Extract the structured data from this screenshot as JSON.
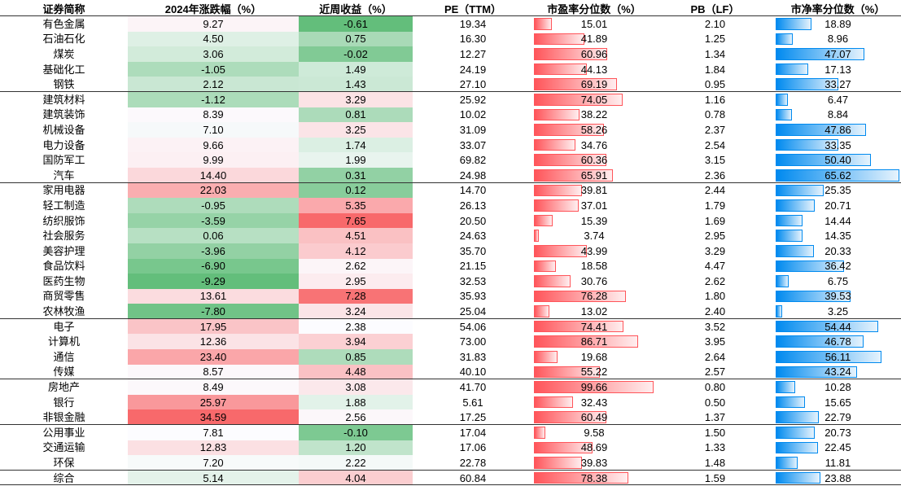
{
  "chart_data": {
    "type": "table",
    "columns": [
      "证券简称",
      "2024年涨跌幅（%）",
      "近周收益（%）",
      "PE（TTM）",
      "市盈率分位数（%）",
      "PB（LF）",
      "市净率分位数（%）"
    ],
    "groups": [
      {
        "rows": [
          [
            "有色金属",
            "9.27",
            "-0.61",
            "19.34",
            "15.01",
            "2.10",
            "18.89"
          ],
          [
            "石油石化",
            "4.50",
            "0.75",
            "16.30",
            "41.89",
            "1.25",
            "8.96"
          ],
          [
            "煤炭",
            "3.06",
            "-0.02",
            "12.27",
            "60.96",
            "1.34",
            "47.07"
          ],
          [
            "基础化工",
            "-1.05",
            "1.49",
            "24.19",
            "44.13",
            "1.84",
            "17.13"
          ],
          [
            "钢铁",
            "2.12",
            "1.43",
            "27.10",
            "69.19",
            "0.95",
            "33.27"
          ]
        ]
      },
      {
        "rows": [
          [
            "建筑材料",
            "-1.12",
            "3.29",
            "25.92",
            "74.05",
            "1.16",
            "6.47"
          ],
          [
            "建筑装饰",
            "8.39",
            "0.81",
            "10.02",
            "38.22",
            "0.78",
            "8.84"
          ],
          [
            "机械设备",
            "7.10",
            "3.25",
            "31.09",
            "58.26",
            "2.37",
            "47.86"
          ],
          [
            "电力设备",
            "9.66",
            "1.74",
            "33.07",
            "34.76",
            "2.54",
            "33.35"
          ],
          [
            "国防军工",
            "9.99",
            "1.99",
            "69.82",
            "60.36",
            "3.15",
            "50.40"
          ],
          [
            "汽车",
            "14.40",
            "0.31",
            "24.98",
            "65.91",
            "2.36",
            "65.62"
          ]
        ]
      },
      {
        "rows": [
          [
            "家用电器",
            "22.03",
            "0.12",
            "14.70",
            "39.81",
            "2.44",
            "25.35"
          ],
          [
            "轻工制造",
            "-0.95",
            "5.35",
            "26.13",
            "37.01",
            "1.79",
            "20.71"
          ],
          [
            "纺织服饰",
            "-3.59",
            "7.65",
            "20.50",
            "15.39",
            "1.69",
            "14.44"
          ],
          [
            "社会服务",
            "0.06",
            "4.51",
            "24.63",
            "3.74",
            "2.95",
            "14.35"
          ],
          [
            "美容护理",
            "-3.96",
            "4.12",
            "35.70",
            "43.99",
            "3.29",
            "20.33"
          ],
          [
            "食品饮料",
            "-6.90",
            "2.62",
            "21.15",
            "18.58",
            "4.47",
            "36.42"
          ],
          [
            "医药生物",
            "-9.29",
            "2.95",
            "32.53",
            "30.76",
            "2.62",
            "6.75"
          ],
          [
            "商贸零售",
            "13.61",
            "7.28",
            "35.93",
            "76.28",
            "1.80",
            "39.53"
          ],
          [
            "农林牧渔",
            "-7.80",
            "3.24",
            "25.04",
            "13.02",
            "2.40",
            "3.25"
          ]
        ]
      },
      {
        "rows": [
          [
            "电子",
            "17.95",
            "2.38",
            "54.06",
            "74.41",
            "3.52",
            "54.44"
          ],
          [
            "计算机",
            "12.36",
            "3.94",
            "73.00",
            "86.71",
            "3.95",
            "46.78"
          ],
          [
            "通信",
            "23.40",
            "0.85",
            "31.83",
            "19.68",
            "2.64",
            "56.11"
          ],
          [
            "传媒",
            "8.57",
            "4.48",
            "40.10",
            "55.22",
            "2.57",
            "43.24"
          ]
        ]
      },
      {
        "rows": [
          [
            "房地产",
            "8.49",
            "3.08",
            "41.70",
            "99.66",
            "0.80",
            "10.28"
          ],
          [
            "银行",
            "25.97",
            "1.88",
            "5.61",
            "32.43",
            "0.50",
            "15.65"
          ],
          [
            "非银金融",
            "34.59",
            "2.56",
            "17.25",
            "60.49",
            "1.37",
            "22.79"
          ]
        ]
      },
      {
        "rows": [
          [
            "公用事业",
            "7.81",
            "-0.10",
            "17.04",
            "9.58",
            "1.50",
            "20.73"
          ],
          [
            "交通运输",
            "12.83",
            "1.20",
            "17.06",
            "48.69",
            "1.33",
            "22.45"
          ],
          [
            "环保",
            "7.20",
            "2.22",
            "22.78",
            "39.83",
            "1.48",
            "11.81"
          ]
        ]
      },
      {
        "rows": [
          [
            "综合",
            "5.14",
            "4.04",
            "60.84",
            "78.38",
            "1.59",
            "23.88"
          ]
        ]
      }
    ],
    "color_scale": {
      "low": "#63BE7B",
      "mid": "#FCFCFF",
      "high": "#F8696B"
    },
    "data_bar_colors": {
      "pe_percentile": "#FF555A",
      "pb_percentile": "#008AEF"
    }
  }
}
